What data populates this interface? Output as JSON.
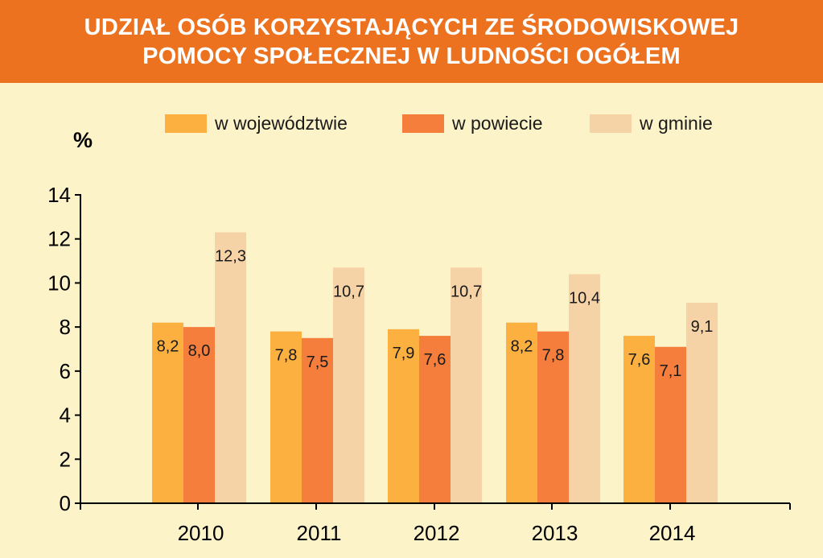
{
  "header": {
    "title_line1": "UDZIAŁ OSÓB KORZYSTAJĄCYCH ZE ŚRODOWISKOWEJ",
    "title_line2": "POMOCY SPOŁECZNEJ W LUDNOŚCI OGÓŁEM"
  },
  "chart_data": {
    "type": "bar",
    "title": "UDZIAŁ OSÓB KORZYSTAJĄCYCH ZE ŚRODOWISKOWEJ POMOCY SPOŁECZNEJ W LUDNOŚCI OGÓŁEM",
    "ylabel": "%",
    "xlabel": "",
    "ylim": [
      0,
      14
    ],
    "yticks": [
      0,
      2,
      4,
      6,
      8,
      10,
      12,
      14
    ],
    "categories": [
      "2010",
      "2011",
      "2012",
      "2013",
      "2014"
    ],
    "series": [
      {
        "name": "w województwie",
        "color": "#fbb040",
        "values": [
          8.2,
          7.8,
          7.9,
          8.2,
          7.6
        ],
        "labels": [
          "8,2",
          "7,8",
          "7,9",
          "8,2",
          "7,6"
        ]
      },
      {
        "name": "w powiecie",
        "color": "#f57e3c",
        "values": [
          8.0,
          7.5,
          7.6,
          7.8,
          7.1
        ],
        "labels": [
          "8,0",
          "7,5",
          "7,6",
          "7,8",
          "7,1"
        ]
      },
      {
        "name": "w gminie",
        "color": "#f5d3a6",
        "values": [
          12.3,
          10.7,
          10.7,
          10.4,
          9.1
        ],
        "labels": [
          "12,3",
          "10,7",
          "10,7",
          "10,4",
          "9,1"
        ]
      }
    ],
    "grid": false,
    "legend_position": "top"
  }
}
